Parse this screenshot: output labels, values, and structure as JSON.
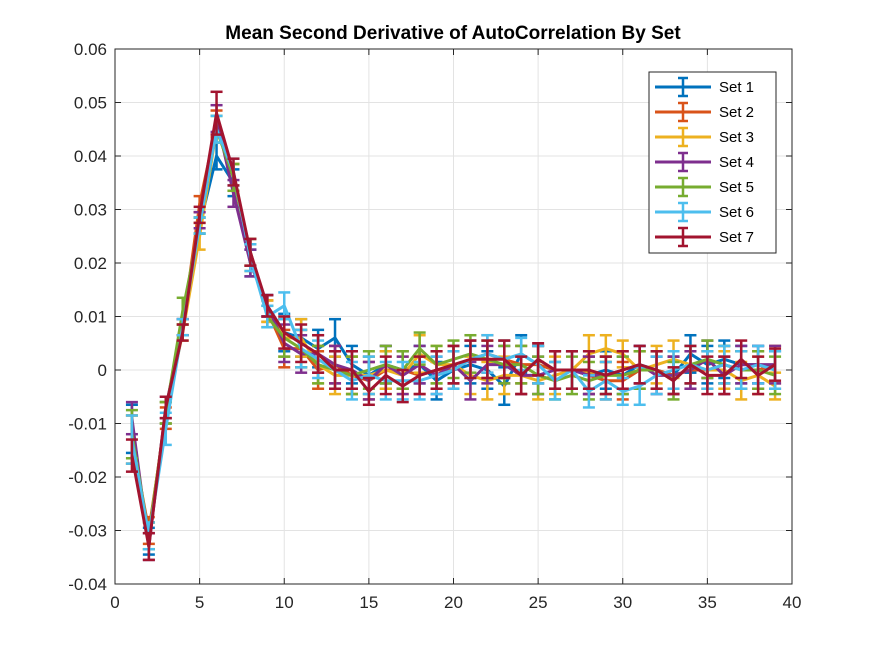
{
  "chart_data": {
    "type": "line",
    "title": "Mean Second Derivative of AutoCorrelation By Set",
    "xlabel": "",
    "ylabel": "",
    "xlim": [
      0,
      40
    ],
    "ylim": [
      -0.04,
      0.06
    ],
    "xticks": [
      0,
      5,
      10,
      15,
      20,
      25,
      30,
      35,
      40
    ],
    "xtick_labels": [
      "0",
      "5",
      "10",
      "15",
      "20",
      "25",
      "30",
      "35",
      "40"
    ],
    "yticks": [
      -0.04,
      -0.03,
      -0.02,
      -0.01,
      0,
      0.01,
      0.02,
      0.03,
      0.04,
      0.05,
      0.06
    ],
    "ytick_labels": [
      "-0.04",
      "-0.03",
      "-0.02",
      "-0.01",
      "0",
      "0.01",
      "0.02",
      "0.03",
      "0.04",
      "0.05",
      "0.06"
    ],
    "grid": true,
    "legend_position": "top-right",
    "error_bars": true,
    "x": [
      1,
      2,
      3,
      4,
      5,
      6,
      7,
      8,
      9,
      10,
      11,
      12,
      13,
      14,
      15,
      16,
      17,
      18,
      19,
      20,
      21,
      22,
      23,
      24,
      25,
      26,
      27,
      28,
      29,
      30,
      31,
      32,
      33,
      34,
      35,
      36,
      37,
      38,
      39
    ],
    "series": [
      {
        "name": "Set 1",
        "color": "#0072BD",
        "values": [
          -0.011,
          -0.032,
          -0.008,
          0.008,
          0.027,
          0.04,
          0.035,
          0.02,
          0.012,
          0.007,
          0.006,
          0.004,
          0.006,
          0.001,
          -0.001,
          0.001,
          0.0,
          0.001,
          -0.002,
          0.0,
          0.001,
          0.0,
          -0.003,
          0.003,
          0.001,
          0.0,
          0.0,
          -0.001,
          0.0,
          -0.001,
          0.001,
          0.0,
          -0.001,
          0.003,
          0.001,
          0.002,
          0.001,
          0.001,
          0.0
        ],
        "err": [
          0.0045,
          0.0025,
          0.002,
          0.0015,
          0.0015,
          0.0025,
          0.0025,
          0.0025,
          0.002,
          0.0035,
          0.0035,
          0.0035,
          0.0035,
          0.0035,
          0.0035,
          0.0035,
          0.0035,
          0.0035,
          0.0035,
          0.0035,
          0.0035,
          0.0035,
          0.0035,
          0.0035,
          0.0035,
          0.0035,
          0.0035,
          0.0035,
          0.0035,
          0.0035,
          0.0035,
          0.0035,
          0.0035,
          0.0035,
          0.0035,
          0.0035,
          0.0035,
          0.0035,
          0.0035
        ]
      },
      {
        "name": "Set 2",
        "color": "#D95319",
        "values": [
          -0.013,
          -0.03,
          -0.009,
          0.008,
          0.031,
          0.046,
          0.036,
          0.022,
          0.011,
          0.004,
          0.004,
          0.0,
          0.001,
          -0.001,
          -0.002,
          0.0,
          0.0,
          -0.001,
          0.0,
          0.0,
          0.002,
          0.003,
          0.002,
          0.001,
          0.001,
          0.0,
          0.0,
          -0.001,
          -0.002,
          -0.002,
          0.0,
          0.0,
          -0.001,
          0.0,
          0.0,
          0.001,
          0.0,
          0.0,
          0.001
        ],
        "err": [
          0.0045,
          0.0025,
          0.002,
          0.0015,
          0.0015,
          0.0025,
          0.0025,
          0.0025,
          0.002,
          0.0035,
          0.0035,
          0.0035,
          0.0035,
          0.0035,
          0.0035,
          0.0035,
          0.0035,
          0.0035,
          0.0035,
          0.0035,
          0.0035,
          0.0035,
          0.0035,
          0.0035,
          0.0035,
          0.0035,
          0.0035,
          0.0035,
          0.0035,
          0.0035,
          0.0035,
          0.0035,
          0.0035,
          0.0035,
          0.0035,
          0.0035,
          0.0035,
          0.0035,
          0.0035
        ]
      },
      {
        "name": "Set 3",
        "color": "#EDB120",
        "values": [
          -0.013,
          -0.031,
          -0.008,
          0.007,
          0.025,
          0.045,
          0.036,
          0.021,
          0.011,
          0.006,
          0.006,
          0.001,
          -0.001,
          -0.001,
          -0.001,
          0.0,
          -0.001,
          0.003,
          0.001,
          0.001,
          -0.001,
          -0.002,
          -0.001,
          -0.001,
          -0.002,
          -0.001,
          0.0,
          0.003,
          0.004,
          0.003,
          0.0,
          0.001,
          0.002,
          0.001,
          0.0,
          0.0,
          -0.002,
          -0.001,
          -0.003
        ],
        "err": [
          0.0045,
          0.0025,
          0.002,
          0.0015,
          0.0025,
          0.0025,
          0.0025,
          0.0025,
          0.002,
          0.0035,
          0.0035,
          0.0035,
          0.0035,
          0.0035,
          0.0035,
          0.0035,
          0.0035,
          0.0035,
          0.0035,
          0.0035,
          0.0035,
          0.0035,
          0.0035,
          0.0035,
          0.0035,
          0.0035,
          0.0035,
          0.0035,
          0.0025,
          0.0025,
          0.0035,
          0.0035,
          0.0035,
          0.0035,
          0.0035,
          0.0035,
          0.0035,
          0.0035,
          0.0025
        ]
      },
      {
        "name": "Set 4",
        "color": "#7E2F8E",
        "values": [
          -0.009,
          -0.033,
          -0.007,
          0.008,
          0.028,
          0.047,
          0.033,
          0.02,
          0.012,
          0.005,
          0.003,
          0.003,
          0.001,
          0.0,
          -0.002,
          0.001,
          -0.001,
          0.001,
          -0.001,
          0.001,
          -0.002,
          0.001,
          0.001,
          -0.001,
          -0.001,
          0.0,
          0.0,
          -0.001,
          -0.001,
          0.0,
          0.001,
          -0.001,
          -0.001,
          0.0,
          0.002,
          -0.001,
          0.001,
          0.001,
          0.001
        ],
        "err": [
          0.003,
          0.0025,
          0.002,
          0.0015,
          0.0015,
          0.0025,
          0.0025,
          0.0025,
          0.002,
          0.0035,
          0.0035,
          0.0035,
          0.0035,
          0.0035,
          0.0035,
          0.0035,
          0.0035,
          0.0035,
          0.0035,
          0.0035,
          0.0035,
          0.0035,
          0.0035,
          0.0035,
          0.0035,
          0.0035,
          0.0035,
          0.0035,
          0.0035,
          0.0035,
          0.0035,
          0.0035,
          0.0035,
          0.0035,
          0.0035,
          0.0035,
          0.0035,
          0.0035,
          0.0035
        ]
      },
      {
        "name": "Set 5",
        "color": "#77AC30",
        "values": [
          -0.012,
          -0.031,
          -0.008,
          0.011,
          0.027,
          0.045,
          0.036,
          0.022,
          0.01,
          0.006,
          0.004,
          0.001,
          0.0,
          -0.001,
          0.0,
          0.001,
          0.0,
          0.004,
          0.001,
          0.002,
          0.003,
          0.002,
          0.001,
          0.001,
          -0.001,
          -0.002,
          -0.001,
          -0.002,
          -0.001,
          -0.001,
          0.0,
          0.0,
          -0.002,
          0.001,
          0.002,
          0.001,
          0.0,
          0.0,
          -0.001
        ],
        "err": [
          0.0045,
          0.0025,
          0.002,
          0.0025,
          0.0015,
          0.0025,
          0.0025,
          0.0025,
          0.002,
          0.0035,
          0.0035,
          0.0035,
          0.0035,
          0.0035,
          0.0035,
          0.0035,
          0.0035,
          0.003,
          0.0035,
          0.0035,
          0.0035,
          0.0035,
          0.0035,
          0.0035,
          0.0035,
          0.0035,
          0.0035,
          0.0035,
          0.0035,
          0.0035,
          0.0035,
          0.0035,
          0.0035,
          0.0035,
          0.0035,
          0.0035,
          0.0035,
          0.0035,
          0.0035
        ]
      },
      {
        "name": "Set 6",
        "color": "#4DBEEE",
        "values": [
          -0.013,
          -0.031,
          -0.011,
          0.008,
          0.027,
          0.045,
          0.037,
          0.021,
          0.01,
          0.012,
          0.004,
          0.002,
          0.0,
          -0.002,
          -0.001,
          -0.002,
          -0.002,
          -0.002,
          -0.001,
          0.0,
          0.002,
          0.003,
          0.002,
          0.003,
          0.001,
          -0.002,
          0.0,
          -0.004,
          -0.002,
          -0.004,
          -0.003,
          -0.001,
          0.0,
          0.001,
          0.0,
          0.001,
          0.0,
          0.001,
          0.0
        ],
        "err": [
          0.0045,
          0.0025,
          0.003,
          0.0015,
          0.0015,
          0.0025,
          0.0025,
          0.0025,
          0.002,
          0.0025,
          0.0035,
          0.0035,
          0.0035,
          0.0035,
          0.0035,
          0.0035,
          0.0035,
          0.0035,
          0.0035,
          0.0035,
          0.0035,
          0.0035,
          0.0035,
          0.003,
          0.0035,
          0.0035,
          0.0035,
          0.003,
          0.0035,
          0.0025,
          0.0035,
          0.0035,
          0.0035,
          0.0035,
          0.0035,
          0.0035,
          0.0035,
          0.0035,
          0.0035
        ]
      },
      {
        "name": "Set 7",
        "color": "#A2142F",
        "values": [
          -0.016,
          -0.033,
          -0.007,
          0.007,
          0.029,
          0.048,
          0.037,
          0.022,
          0.012,
          0.007,
          0.005,
          0.003,
          0.0,
          0.0,
          -0.004,
          -0.001,
          -0.003,
          -0.001,
          0.0,
          0.001,
          0.002,
          0.002,
          0.002,
          -0.001,
          0.002,
          0.0,
          0.0,
          0.0,
          -0.001,
          0.0,
          0.001,
          0.0,
          -0.002,
          0.001,
          -0.001,
          -0.001,
          0.002,
          -0.001,
          0.001
        ],
        "err": [
          0.003,
          0.0025,
          0.002,
          0.0015,
          0.0015,
          0.004,
          0.0025,
          0.0025,
          0.002,
          0.003,
          0.0035,
          0.0035,
          0.0035,
          0.0035,
          0.0025,
          0.0035,
          0.003,
          0.0035,
          0.0035,
          0.0035,
          0.0035,
          0.0035,
          0.0035,
          0.0035,
          0.003,
          0.0035,
          0.0035,
          0.0035,
          0.0035,
          0.0035,
          0.0035,
          0.0035,
          0.0025,
          0.0035,
          0.0035,
          0.0035,
          0.0035,
          0.0035,
          0.003
        ]
      }
    ]
  }
}
